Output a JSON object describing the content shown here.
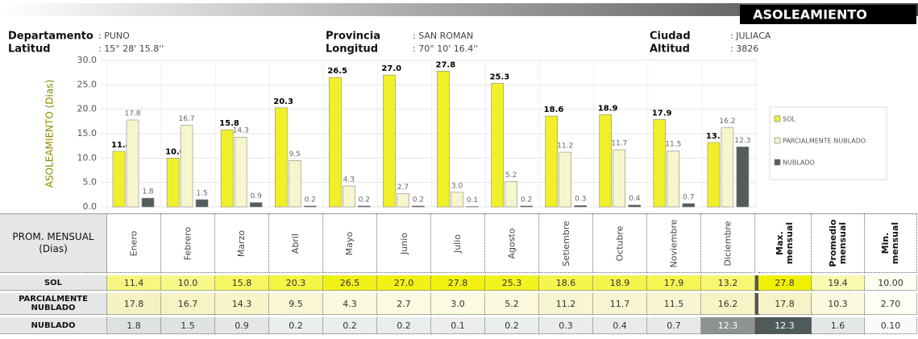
{
  "header": {
    "title": "ASOLEAMIENTO",
    "fields": [
      {
        "label": "Departamento",
        "value": ": PUNO"
      },
      {
        "label": "Latitud",
        "value": ": 15° 28' 15.8''"
      },
      {
        "label": "Provincia",
        "value": ": SAN ROMAN"
      },
      {
        "label": "Longitud",
        "value": ": 70° 10' 16.4''"
      },
      {
        "label": "Ciudad",
        "value": ": JULIACA"
      },
      {
        "label": "Altitud",
        "value": ": 3826"
      }
    ]
  },
  "chart_data": {
    "type": "bar",
    "ylabel": "ASOLEAMIENTO (Dias)",
    "categories": [
      "Enero",
      "Febrero",
      "Marzo",
      "Abril",
      "Mayo",
      "Junio",
      "Julio",
      "Agosto",
      "Setiembre",
      "Octubre",
      "Noviembre",
      "Diciembre"
    ],
    "series": [
      {
        "name": "SOL",
        "color": "#f0f02a",
        "values": [
          11.4,
          10.0,
          15.8,
          20.3,
          26.5,
          27.0,
          27.8,
          25.3,
          18.6,
          18.9,
          17.9,
          13.2
        ],
        "value_labels": [
          "11.4",
          "10.0",
          "15.8",
          "20.3",
          "26.5",
          "27.0",
          "27.8",
          "25.3",
          "18.6",
          "18.9",
          "17.9",
          "13.2"
        ]
      },
      {
        "name": "PARCIALMENTE NUBLADO",
        "color": "#f6f5cc",
        "values": [
          17.8,
          16.7,
          14.3,
          9.5,
          4.3,
          2.7,
          3.0,
          5.2,
          11.2,
          11.7,
          11.5,
          16.2
        ],
        "value_labels": [
          "17.8",
          "16.7",
          "14.3",
          "9.5",
          "4.3",
          "2.7",
          "3.0",
          "5.2",
          "11.2",
          "11.7",
          "11.5",
          "16.2"
        ]
      },
      {
        "name": "NUBLADO",
        "color": "#535d5d",
        "values": [
          1.8,
          1.5,
          0.9,
          0.2,
          0.2,
          0.2,
          0.1,
          0.2,
          0.3,
          0.4,
          0.7,
          12.3
        ],
        "value_labels": [
          "1.8",
          "1.5",
          "0.9",
          "0.2",
          "0.2",
          "0.2",
          "0.1",
          "0.2",
          "0.3",
          "0.4",
          "0.7",
          "12.3"
        ]
      }
    ],
    "ylim": [
      0,
      30
    ],
    "yticks": [
      {
        "value": 0,
        "label": "0.0"
      },
      {
        "value": 5,
        "label": "5.0"
      },
      {
        "value": 10,
        "label": "10.0"
      },
      {
        "value": 15,
        "label": "15.0"
      },
      {
        "value": 20,
        "label": "20.0"
      },
      {
        "value": 25,
        "label": "25.0"
      },
      {
        "value": 30,
        "label": "30.0"
      }
    ],
    "grid": true,
    "legend": "right"
  },
  "table": {
    "corner": "PROM. MENSUAL (Dias)",
    "summary_headers": [
      "Max. mensual",
      "Promedio mensual",
      "Min. mensual"
    ],
    "summary": [
      [
        "27.8",
        "19.4",
        "10.00"
      ],
      [
        "17.8",
        "10.3",
        "2.70"
      ],
      [
        "12.3",
        "1.6",
        "0.10"
      ]
    ]
  }
}
